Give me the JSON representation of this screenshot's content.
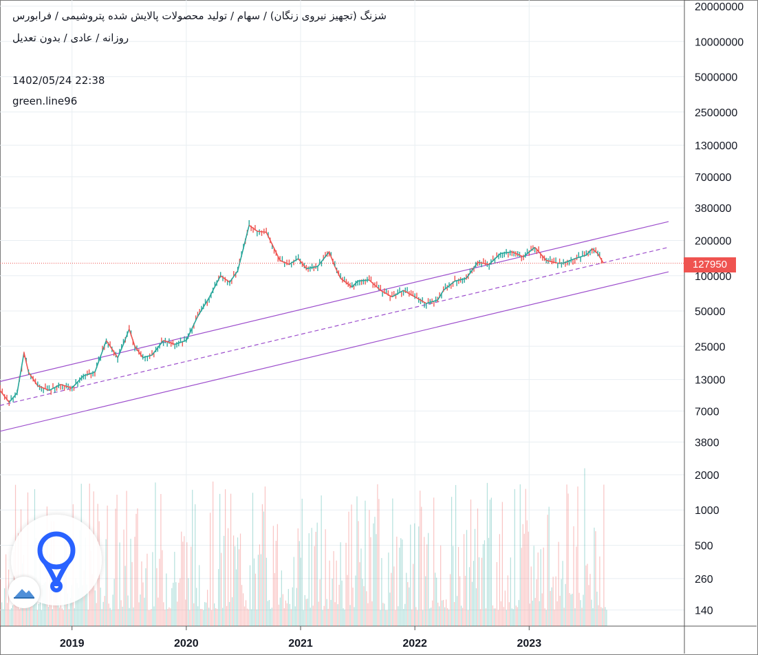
{
  "header": {
    "line1": "شزنگ (تجهیز نیروی زنگان) / سهام / تولید محصولات پالایش شده پتروشیمی / فرابورس",
    "line2": "روزانه / عادی / بدون تعدیل",
    "datetime": "1402/05/24 22:38",
    "author": "green.line96"
  },
  "colors": {
    "up": "#26a69a",
    "down": "#ef5350",
    "channel": "#9c4dcc",
    "grid": "#e8eef2",
    "price_line": "#ef5350",
    "logo": "#2962ff"
  },
  "icons": {
    "logo": "tradingview-loop-logo",
    "badge": "mountain-cloud-icon"
  },
  "chart_data": {
    "type": "line",
    "scale": "log",
    "grid": true,
    "x_tick_labels": [
      "2019",
      "2020",
      "2021",
      "2022",
      "2023"
    ],
    "x_ticks": [
      2019,
      2020,
      2021,
      2022,
      2023
    ],
    "xlim": [
      2018.37,
      2024.9
    ],
    "price_axis": {
      "tick_labels": [
        "20000000",
        "10000000",
        "5000000",
        "2500000",
        "1300000",
        "700000",
        "380000",
        "200000",
        "100000",
        "50000",
        "25000",
        "13000",
        "7000",
        "3800",
        "2000",
        "1000",
        "500",
        "260",
        "140"
      ],
      "ylim": [
        120,
        22000000
      ]
    },
    "last_price": {
      "label": "127950",
      "value": 127950
    },
    "price_series": {
      "name": "",
      "x": [
        2018.37,
        2018.45,
        2018.52,
        2018.58,
        2018.62,
        2018.7,
        2018.8,
        2018.9,
        2019.0,
        2019.1,
        2019.2,
        2019.3,
        2019.4,
        2019.45,
        2019.5,
        2019.55,
        2019.62,
        2019.7,
        2019.8,
        2019.9,
        2020.0,
        2020.1,
        2020.2,
        2020.3,
        2020.38,
        2020.45,
        2020.55,
        2020.62,
        2020.7,
        2020.82,
        2020.9,
        2020.98,
        2021.05,
        2021.15,
        2021.25,
        2021.3,
        2021.35,
        2021.45,
        2021.5,
        2021.6,
        2021.7,
        2021.8,
        2021.9,
        2022.0,
        2022.1,
        2022.2,
        2022.25,
        2022.35,
        2022.45,
        2022.55,
        2022.65,
        2022.75,
        2022.85,
        2022.95,
        2023.05,
        2023.15,
        2023.25,
        2023.3,
        2023.4,
        2023.5,
        2023.55,
        2023.6,
        2023.65
      ],
      "values": [
        10500,
        8300,
        10000,
        22000,
        15000,
        11500,
        10500,
        11800,
        11000,
        14000,
        15000,
        28000,
        20000,
        26000,
        35000,
        25000,
        20000,
        21000,
        28000,
        26000,
        28000,
        45000,
        65000,
        100000,
        88000,
        110000,
        270000,
        240000,
        235000,
        135000,
        125000,
        140000,
        115000,
        120000,
        160000,
        120000,
        95000,
        80000,
        90000,
        92000,
        75000,
        66000,
        75000,
        66000,
        58000,
        62000,
        75000,
        90000,
        95000,
        130000,
        125000,
        155000,
        160000,
        145000,
        175000,
        135000,
        128000,
        128000,
        140000,
        150000,
        170000,
        155000,
        127950
      ]
    },
    "volume_series": {
      "name": "",
      "note_scale": "log"
    },
    "channel": {
      "upper": {
        "x": [
          2018.37,
          2024.22
        ],
        "values": [
          12500,
          290000
        ]
      },
      "middle": {
        "x": [
          2018.37,
          2024.22
        ],
        "values": [
          7800,
          175000
        ]
      },
      "lower": {
        "x": [
          2018.37,
          2024.22
        ],
        "values": [
          4700,
          108000
        ]
      }
    }
  }
}
